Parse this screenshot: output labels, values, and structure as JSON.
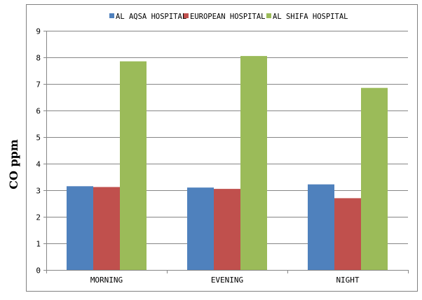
{
  "chart_data": {
    "type": "bar",
    "categories": [
      "MORNING",
      "EVENING",
      "NIGHT"
    ],
    "series": [
      {
        "name": "AL AQSA HOSPITAL",
        "color": "#4f81bd",
        "values": [
          3.15,
          3.1,
          3.22
        ]
      },
      {
        "name": "EUROPEAN HOSPITAL",
        "color": "#c0504d",
        "values": [
          3.12,
          3.05,
          2.7
        ]
      },
      {
        "name": "AL SHIFA HOSPITAL",
        "color": "#9bbb59",
        "values": [
          7.85,
          8.05,
          6.85
        ]
      }
    ],
    "ylabel": "CO ppm",
    "ylim": [
      0,
      9
    ],
    "yticks": [
      "0",
      "1",
      "2",
      "3",
      "4",
      "5",
      "6",
      "7",
      "8",
      "9"
    ],
    "grid": true,
    "legend_position": "top"
  }
}
